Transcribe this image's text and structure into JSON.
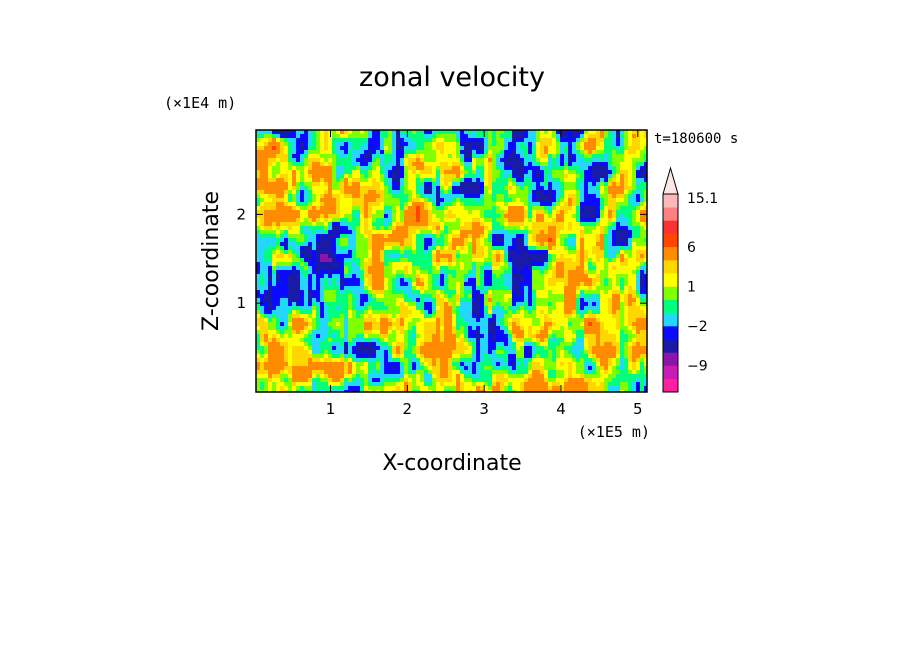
{
  "chart_data": {
    "type": "heatmap",
    "title": "zonal velocity",
    "xlabel": "X-coordinate",
    "ylabel": "Z-coordinate",
    "x_multiplier": "(×1E5 m)",
    "y_multiplier": "(×1E4 m)",
    "time_label": "t=180600 s",
    "xlim": [
      0.03,
      5.12
    ],
    "ylim": [
      0,
      2.95
    ],
    "x_ticks": [
      1,
      2,
      3,
      4,
      5
    ],
    "y_ticks": [
      1,
      2
    ],
    "x_tick_labels": [
      "1",
      "2",
      "3",
      "4",
      "5"
    ],
    "y_tick_labels": [
      "1",
      "2"
    ],
    "colorbar": {
      "levels": [
        -15,
        -12,
        -9,
        -6,
        -3,
        -2,
        -1,
        0,
        1,
        2,
        3,
        6,
        9,
        12,
        15.1
      ],
      "colors": [
        "#ff1fa0",
        "#c81ab4",
        "#8c14a8",
        "#1a1aa8",
        "#0a0aff",
        "#23d7ff",
        "#00ff7f",
        "#7fff00",
        "#ffff00",
        "#ffd700",
        "#ff8c00",
        "#ff4500",
        "#ff3030",
        "#ff8080",
        "#ffb8b8"
      ],
      "labels": [
        "15.1",
        "6",
        "1",
        "−2",
        "−9"
      ],
      "label_values": [
        15.1,
        6,
        1,
        -2,
        -9
      ],
      "extend": "max"
    },
    "grid": false,
    "legend_placement": "right"
  },
  "colors": {
    "magenta": "#ff1fa0",
    "dark_blue": "#1a1aa8",
    "blue": "#0a0aff",
    "cyan": "#23d7ff",
    "green": "#00ff7f",
    "yellow": "#ffff00",
    "orange": "#ff8c00",
    "red": "#ff3030",
    "pink": "#ffb8b8"
  }
}
